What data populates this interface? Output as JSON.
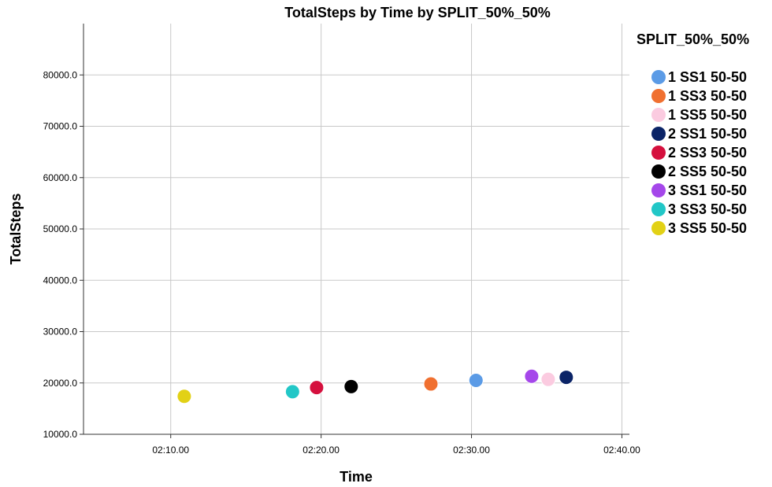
{
  "chart_data": {
    "type": "scatter",
    "title": "TotalSteps by Time by SPLIT_50%_50%",
    "xlabel": "Time",
    "ylabel": "TotalSteps",
    "x_unit": "minutes",
    "xlim": [
      4.2,
      40.5
    ],
    "ylim": [
      10000,
      90000
    ],
    "x_ticks": [
      10,
      20,
      30,
      40
    ],
    "x_tick_labels": [
      "02:10.00",
      "02:20.00",
      "02:30.00",
      "02:40.00"
    ],
    "y_ticks": [
      10000,
      20000,
      30000,
      40000,
      50000,
      60000,
      70000,
      80000
    ],
    "y_tick_labels": [
      "10000.0",
      "20000.0",
      "30000.0",
      "40000.0",
      "50000.0",
      "60000.0",
      "70000.0",
      "80000.0"
    ],
    "grid": true,
    "legend_title": "SPLIT_50%_50%",
    "legend_position": "right",
    "series": [
      {
        "name": "1 SS1 50-50",
        "color": "#5B9BE6",
        "x": [
          30.3
        ],
        "y": [
          20500
        ]
      },
      {
        "name": "1 SS3 50-50",
        "color": "#F07030",
        "x": [
          27.3
        ],
        "y": [
          19800
        ]
      },
      {
        "name": "1 SS5 50-50",
        "color": "#FBCBE0",
        "x": [
          35.1
        ],
        "y": [
          20700
        ]
      },
      {
        "name": "2 SS1 50-50",
        "color": "#0B2467",
        "x": [
          36.3
        ],
        "y": [
          21100
        ]
      },
      {
        "name": "2 SS3 50-50",
        "color": "#D5103E",
        "x": [
          19.7
        ],
        "y": [
          19100
        ]
      },
      {
        "name": "2 SS5 50-50",
        "color": "#000000",
        "x": [
          22.0
        ],
        "y": [
          19300
        ]
      },
      {
        "name": "3 SS1 50-50",
        "color": "#A547EA",
        "x": [
          34.0
        ],
        "y": [
          21300
        ]
      },
      {
        "name": "3 SS3 50-50",
        "color": "#22C7C7",
        "x": [
          18.1
        ],
        "y": [
          18300
        ]
      },
      {
        "name": "3 SS5 50-50",
        "color": "#E2D116",
        "x": [
          10.9
        ],
        "y": [
          17400
        ]
      }
    ]
  }
}
